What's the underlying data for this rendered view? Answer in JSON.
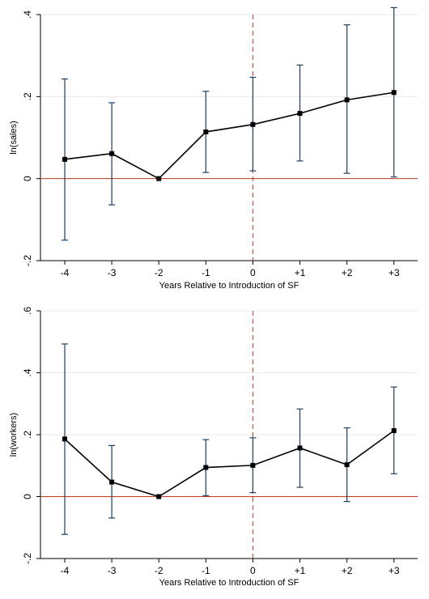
{
  "chart_data": [
    {
      "type": "line",
      "categories": [
        "-4",
        "-3",
        "-2",
        "-1",
        "0",
        "+1",
        "+2",
        "+3"
      ],
      "xlabel": "Years Relative to Introduction of SF",
      "ylabel": "ln(sales)",
      "ylim": [
        -0.2,
        0.4
      ],
      "yticks": [
        -0.2,
        0,
        0.2,
        0.4
      ],
      "ytick_labels": [
        "-.2",
        "0",
        ".2",
        ".4"
      ],
      "values": [
        0.047,
        0.061,
        0.0,
        0.114,
        0.132,
        0.159,
        0.192,
        0.21
      ],
      "ci_low": [
        -0.15,
        -0.064,
        0.0,
        0.015,
        0.019,
        0.043,
        0.013,
        0.004
      ],
      "ci_high": [
        0.243,
        0.185,
        0.0,
        0.213,
        0.247,
        0.277,
        0.375,
        0.417
      ],
      "reference_line_y": 0,
      "reference_line_x": "0",
      "grid": true,
      "legend": "none"
    },
    {
      "type": "line",
      "categories": [
        "-4",
        "-3",
        "-2",
        "-1",
        "0",
        "+1",
        "+2",
        "+3"
      ],
      "xlabel": "Years Relative to Introduction of SF",
      "ylabel": "ln(workers)",
      "ylim": [
        -0.2,
        0.6
      ],
      "yticks": [
        -0.2,
        0,
        0.2,
        0.4,
        0.6
      ],
      "ytick_labels": [
        "-.2",
        "0",
        ".2",
        ".4",
        ".6"
      ],
      "values": [
        0.186,
        0.047,
        0.0,
        0.094,
        0.101,
        0.157,
        0.103,
        0.213
      ],
      "ci_low": [
        -0.122,
        -0.069,
        0.0,
        0.003,
        0.013,
        0.03,
        -0.016,
        0.074
      ],
      "ci_high": [
        0.493,
        0.165,
        0.0,
        0.184,
        0.19,
        0.283,
        0.222,
        0.354
      ],
      "reference_line_y": 0,
      "reference_line_x": "0",
      "grid": true,
      "legend": "none"
    }
  ],
  "colors": {
    "series": "#000000",
    "ci": "#1f3f5f",
    "zero_line": "#c0392b",
    "vertical_ref": "#c0392b",
    "grid": "#e6eaee",
    "frame": "#000000"
  }
}
